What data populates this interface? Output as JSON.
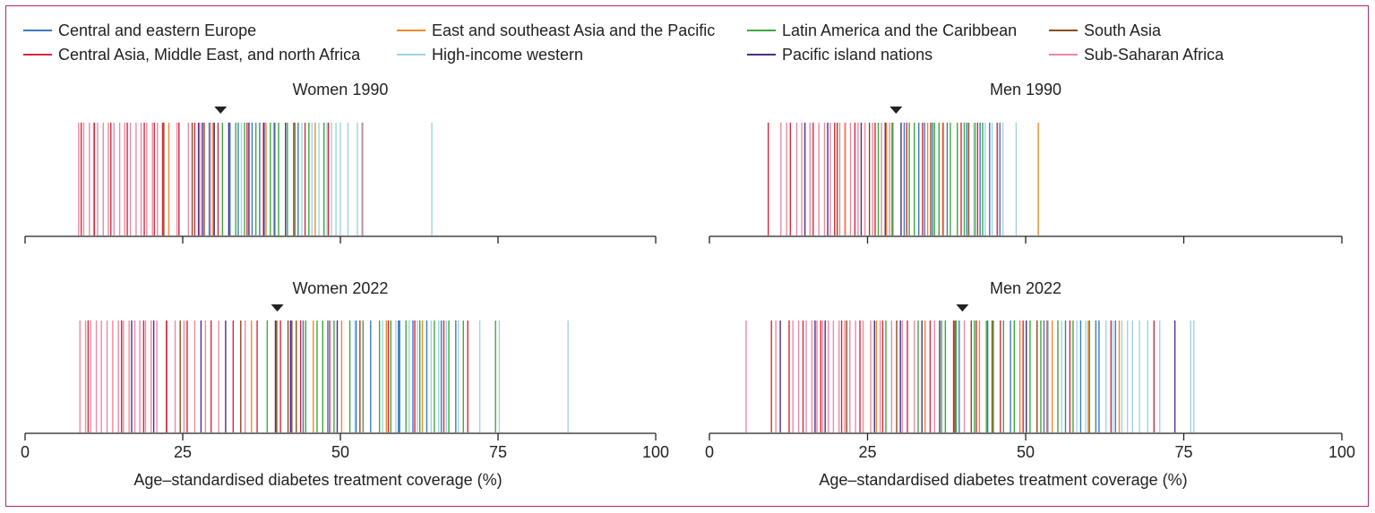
{
  "colors": {
    "Central and eastern Europe": "#3a7bbf",
    "East and southeast Asia and the Pacific": "#f0892b",
    "Latin America and the Caribbean": "#3ea83e",
    "South Asia": "#8c4a20",
    "Central Asia, Middle East, and north Africa": "#d6283a",
    "High-income western": "#9fd3e0",
    "Pacific island nations": "#4b2e83",
    "Sub-Saharan Africa": "#ec8aa3"
  },
  "chart_data": [
    {
      "type": "rug",
      "title": "Women 1990",
      "xlabel": "",
      "xlim": [
        0,
        100
      ],
      "xticks": [],
      "median_marker": 31,
      "series": [
        {
          "name": "Sub-Saharan Africa",
          "values": [
            8.5,
            9.3,
            10.2,
            10.9,
            11.5,
            12.4,
            13.2,
            14.1,
            15.0,
            15.8,
            16.7,
            17.6,
            18.4,
            19.3,
            20.2,
            21.0,
            24.1,
            25.9,
            27.7,
            29.4
          ]
        },
        {
          "name": "Central Asia, Middle East, and north Africa",
          "values": [
            8.9,
            11.0,
            13.6,
            16.2,
            18.9,
            20.5,
            21.8,
            24.4,
            26.9,
            30.6,
            35.2,
            37.8,
            42.6,
            44.4,
            48.1,
            53.5
          ]
        },
        {
          "name": "Pacific island nations",
          "values": [
            27.5,
            28.1,
            30.0,
            32.3,
            35.5,
            37.9,
            41.3
          ]
        },
        {
          "name": "South Asia",
          "values": [
            22.0,
            26.5,
            28.4,
            39.6
          ]
        },
        {
          "name": "Latin America and the Caribbean",
          "values": [
            31.3,
            33.4,
            34.8,
            36.6,
            38.9,
            40.2,
            41.6,
            42.8,
            45.0,
            47.4
          ]
        },
        {
          "name": "Central and eastern Europe",
          "values": [
            29.2,
            32.5,
            33.8,
            36.0,
            37.2,
            39.5,
            43.3
          ]
        },
        {
          "name": "East and southeast Asia and the Pacific",
          "values": [
            22.8,
            29.8,
            38.2,
            46.0
          ]
        },
        {
          "name": "High-income western",
          "values": [
            34.3,
            43.9,
            45.5,
            46.6,
            47.9,
            48.6,
            49.3,
            50.0,
            51.2,
            52.7,
            53.4,
            64.5
          ]
        }
      ]
    },
    {
      "type": "rug",
      "title": "Men 1990",
      "xlabel": "",
      "xlim": [
        0,
        100
      ],
      "xticks": [],
      "median_marker": 29.5,
      "series": [
        {
          "name": "Sub-Saharan Africa",
          "values": [
            11.3,
            12.2,
            13.8,
            14.6,
            15.9,
            17.3,
            18.2,
            19.1,
            20.6,
            21.4,
            22.3,
            23.5,
            24.6,
            25.8,
            27.2,
            28.5
          ]
        },
        {
          "name": "Central Asia, Middle East, and north Africa",
          "values": [
            9.3,
            12.8,
            16.4,
            19.8,
            23.0,
            26.2,
            31.2,
            33.7,
            36.9,
            39.8,
            42.4,
            45.5
          ]
        },
        {
          "name": "Pacific island nations",
          "values": [
            15.1,
            18.7,
            24.0,
            27.8,
            30.3,
            34.0,
            45.9
          ]
        },
        {
          "name": "South Asia",
          "values": [
            20.2,
            25.3,
            28.9,
            35.0,
            41.0
          ]
        },
        {
          "name": "Latin America and the Caribbean",
          "values": [
            26.7,
            29.0,
            31.6,
            32.4,
            35.6,
            36.3,
            38.1,
            39.2,
            40.3,
            42.0,
            43.2
          ]
        },
        {
          "name": "Central and eastern Europe",
          "values": [
            30.8,
            33.1,
            35.3,
            37.6,
            40.7,
            42.8,
            44.3
          ]
        },
        {
          "name": "East and southeast Asia and the Pacific",
          "values": [
            21.5,
            28.0,
            34.5,
            37.0,
            52.0
          ]
        },
        {
          "name": "High-income western",
          "values": [
            33.9,
            41.8,
            43.6,
            44.7,
            45.8,
            46.4,
            48.5
          ]
        }
      ]
    },
    {
      "type": "rug",
      "title": "Women 2022",
      "xlabel": "Age-standardised diabetes treatment coverage (%)",
      "xlim": [
        0,
        100
      ],
      "xticks": [
        "0",
        "25",
        "50",
        "75",
        "100"
      ],
      "median_marker": 40,
      "series": [
        {
          "name": "Sub-Saharan Africa",
          "values": [
            8.7,
            9.6,
            10.4,
            11.3,
            12.1,
            13.0,
            13.9,
            14.8,
            15.6,
            16.5,
            17.4,
            18.2,
            19.1,
            20.0,
            20.9,
            22.5,
            23.8,
            25.2,
            26.9,
            28.6,
            30.7,
            34.9
          ]
        },
        {
          "name": "Central Asia, Middle East, and north Africa",
          "values": [
            10.0,
            15.3,
            18.8,
            22.4,
            25.7,
            29.5,
            33.0,
            36.8,
            40.5,
            43.7,
            48.3,
            53.1,
            57.6,
            61.8,
            66.4,
            70.2
          ]
        },
        {
          "name": "Pacific island nations",
          "values": [
            16.9,
            20.4,
            27.9,
            31.8,
            39.7,
            42.1,
            49.5
          ]
        },
        {
          "name": "South Asia",
          "values": [
            24.6,
            34.2,
            39.9,
            41.7,
            42.3,
            43.0
          ]
        },
        {
          "name": "Latin America and the Caribbean",
          "values": [
            38.4,
            44.5,
            46.3,
            47.2,
            49.0,
            51.5,
            53.6,
            56.2,
            58.0,
            60.4,
            62.6,
            64.9,
            67.2,
            69.5,
            74.6
          ]
        },
        {
          "name": "Central and eastern Europe",
          "values": [
            44.1,
            48.0,
            52.5,
            54.8,
            59.2,
            59.4,
            61.5,
            63.7,
            66.0,
            68.3
          ]
        },
        {
          "name": "East and southeast Asia and the Pacific",
          "values": [
            35.9,
            45.7,
            50.2,
            57.3,
            63.0
          ]
        },
        {
          "name": "High-income western",
          "values": [
            52.3,
            56.7,
            58.8,
            60.9,
            62.2,
            64.4,
            65.6,
            66.8,
            68.7,
            72.1,
            75.2,
            86.1
          ]
        }
      ]
    },
    {
      "type": "rug",
      "title": "Men 2022",
      "xlabel": "Age-standardised diabetes treatment coverage (%)",
      "xlim": [
        0,
        100
      ],
      "xticks": [
        "0",
        "25",
        "50",
        "75",
        "100"
      ],
      "median_marker": 40,
      "series": [
        {
          "name": "Sub-Saharan Africa",
          "values": [
            5.8,
            10.5,
            13.2,
            14.1,
            15.3,
            16.2,
            17.0,
            17.9,
            18.8,
            19.6,
            20.5,
            21.4,
            22.2,
            23.1,
            24.3,
            25.5,
            27.0,
            28.8,
            30.5,
            32.4,
            35.6,
            40.3
          ]
        },
        {
          "name": "Central Asia, Middle East, and north Africa",
          "values": [
            9.8,
            12.6,
            14.8,
            17.6,
            20.9,
            23.8,
            27.4,
            31.3,
            34.9,
            38.6,
            42.2,
            46.0,
            49.6,
            53.4,
            57.0,
            63.5,
            70.3
          ]
        },
        {
          "name": "Pacific island nations",
          "values": [
            11.2,
            16.7,
            18.3,
            26.1,
            30.2,
            33.6,
            36.4,
            50.1,
            73.6
          ]
        },
        {
          "name": "South Asia",
          "values": [
            21.7,
            29.6,
            38.8,
            41.4,
            44.7,
            51.8
          ]
        },
        {
          "name": "Latin America and the Caribbean",
          "values": [
            27.9,
            33.0,
            36.7,
            37.3,
            39.0,
            41.9,
            43.8,
            44.9,
            46.5,
            48.2,
            50.7,
            52.4,
            55.1,
            57.5,
            60.1
          ]
        },
        {
          "name": "Central and eastern Europe",
          "values": [
            39.5,
            44.0,
            47.6,
            52.9,
            56.3,
            58.7,
            61.1,
            61.6,
            64.2
          ]
        },
        {
          "name": "East and southeast Asia and the Pacific",
          "values": [
            26.4,
            34.1,
            42.7,
            49.1,
            54.2,
            59.9,
            64.8
          ]
        },
        {
          "name": "High-income western",
          "values": [
            53.6,
            55.7,
            58.1,
            59.5,
            62.7,
            63.8,
            65.2,
            66.1,
            66.9,
            68.0,
            69.3,
            71.2,
            76.1,
            76.6
          ]
        }
      ]
    }
  ]
}
